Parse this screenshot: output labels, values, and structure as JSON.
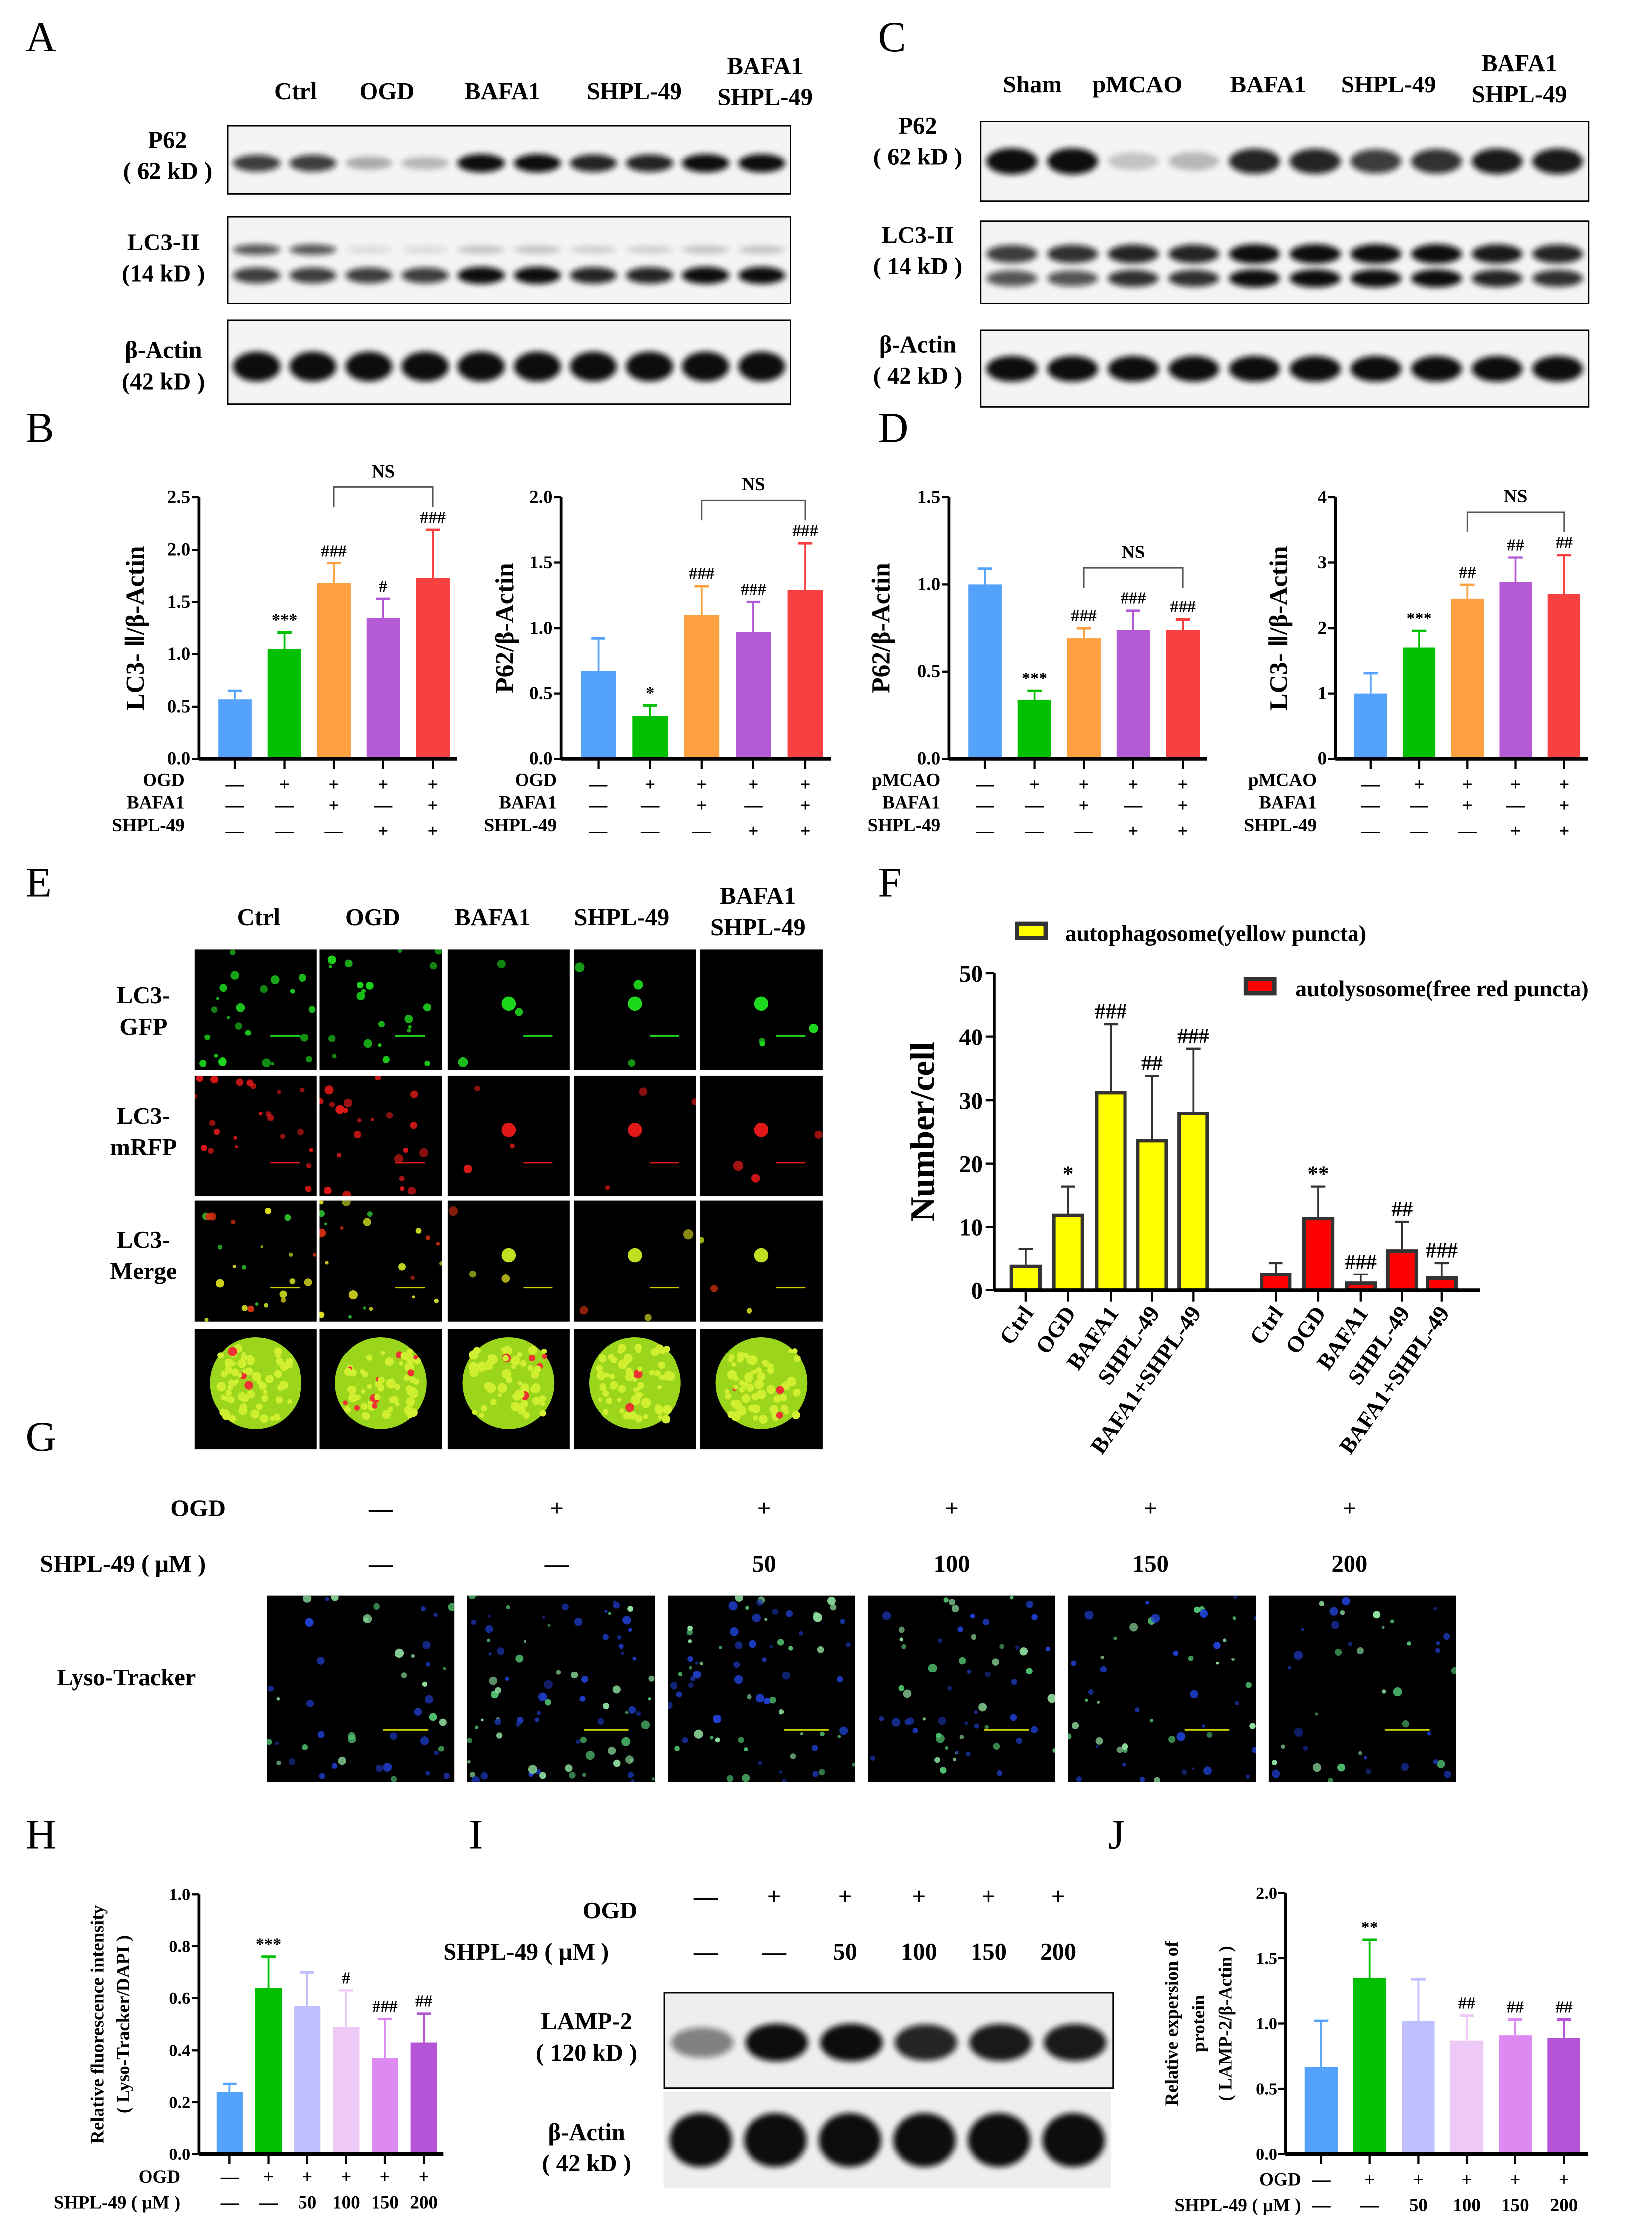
{
  "panels": {
    "A": "A",
    "B": "B",
    "C": "C",
    "D": "D",
    "E": "E",
    "F": "F",
    "G": "G",
    "H": "H",
    "I": "I",
    "J": "J"
  },
  "panel_A": {
    "lanes": [
      "Ctrl",
      "OGD",
      "BAFA1",
      "SHPL-49"
    ],
    "lane5": [
      "BAFA1",
      "SHPL-49"
    ],
    "rows": [
      {
        "name": "P62",
        "kd": "( 62 kD )"
      },
      {
        "name": "LC3-II",
        "kd": "(14 kD )"
      },
      {
        "name": "β-Actin",
        "kd": "(42 kD )"
      }
    ]
  },
  "panel_C": {
    "lanes": [
      "Sham",
      "pMCAO",
      "BAFA1",
      "SHPL-49"
    ],
    "lane5": [
      "BAFA1",
      "SHPL-49"
    ],
    "rows": [
      {
        "name": "P62",
        "kd": "( 62 kD )"
      },
      {
        "name": "LC3-II",
        "kd": "( 14 kD )"
      },
      {
        "name": "β-Actin",
        "kd": "( 42 kD )"
      }
    ]
  },
  "panel_E": {
    "columns": [
      "Ctrl",
      "OGD",
      "BAFA1",
      "SHPL-49"
    ],
    "column5": [
      "BAFA1",
      "SHPL-49"
    ],
    "rows": [
      [
        "LC3-",
        "GFP"
      ],
      [
        "LC3-",
        "mRFP"
      ],
      [
        "LC3-",
        "Merge"
      ]
    ]
  },
  "panel_G": {
    "ogd_label": "OGD",
    "shpl_label": "SHPL-49 ( μM )",
    "ogd": [
      "—",
      "+",
      "+",
      "+",
      "+",
      "+"
    ],
    "shpl": [
      "—",
      "—",
      "50",
      "100",
      "150",
      "200"
    ],
    "row_label": "Lyso-Tracker"
  },
  "panel_I": {
    "ogd_label": "OGD",
    "shpl_label": "SHPL-49 ( μM )",
    "ogd": [
      "—",
      "+",
      "+",
      "+",
      "+",
      "+"
    ],
    "shpl": [
      "—",
      "—",
      "50",
      "100",
      "150",
      "200"
    ],
    "rows": [
      {
        "name": "LAMP-2",
        "kd": "( 120 kD )"
      },
      {
        "name": "β-Actin",
        "kd": "( 42 kD )"
      }
    ]
  },
  "colors": {
    "blue": "#55a2fc",
    "green": "#00bf00",
    "orange": "#fca040",
    "purple": "#b55ad6",
    "red": "#f94040",
    "lavender": "#c0bfff",
    "pink": "#efc9f5",
    "violet": "#dc8af2",
    "magenta": "#b554d6",
    "yellow": "#ffff00",
    "dark_red": "#ff0000"
  },
  "chart_data": [
    {
      "id": "B1",
      "type": "bar",
      "ylabel": [
        "LC3- Ⅱ/β-Actin"
      ],
      "ylim": [
        0,
        2.5
      ],
      "yticks": [
        "0.0",
        "0.5",
        "1.0",
        "1.5",
        "2.0",
        "2.5"
      ],
      "values": [
        0.57,
        1.05,
        1.68,
        1.35,
        1.73
      ],
      "error_top": [
        0.65,
        1.21,
        1.87,
        1.53,
        2.19
      ],
      "significance": [
        "",
        "***",
        "###",
        "#",
        "###"
      ],
      "bracket": {
        "from": 2,
        "to": 4,
        "label": "NS"
      },
      "conditions": [
        {
          "label": "OGD",
          "values": [
            "—",
            "+",
            "+",
            "+",
            "+"
          ]
        },
        {
          "label": "BAFA1",
          "values": [
            "—",
            "—",
            "+",
            "—",
            "+"
          ]
        },
        {
          "label": "SHPL-49",
          "values": [
            "—",
            "—",
            "—",
            "+",
            "+"
          ]
        }
      ],
      "bar_colors": [
        "#55a2fc",
        "#00bf00",
        "#fca040",
        "#b55ad6",
        "#f94040"
      ]
    },
    {
      "id": "B2",
      "type": "bar",
      "ylabel": [
        "P62/β-Actin"
      ],
      "ylim": [
        0,
        2.0
      ],
      "yticks": [
        "0.0",
        "0.5",
        "1.0",
        "1.5",
        "2.0"
      ],
      "values": [
        0.67,
        0.33,
        1.1,
        0.97,
        1.29
      ],
      "error_top": [
        0.92,
        0.41,
        1.32,
        1.2,
        1.65
      ],
      "significance": [
        "",
        "*",
        "###",
        "###",
        "###"
      ],
      "bracket": {
        "from": 2,
        "to": 4,
        "label": "NS"
      },
      "conditions": [
        {
          "label": "OGD",
          "values": [
            "—",
            "+",
            "+",
            "+",
            "+"
          ]
        },
        {
          "label": "BAFA1",
          "values": [
            "—",
            "—",
            "+",
            "—",
            "+"
          ]
        },
        {
          "label": "SHPL-49",
          "values": [
            "—",
            "—",
            "—",
            "+",
            "+"
          ]
        }
      ],
      "bar_colors": [
        "#55a2fc",
        "#00bf00",
        "#fca040",
        "#b55ad6",
        "#f94040"
      ]
    },
    {
      "id": "D1",
      "type": "bar",
      "ylabel": [
        "P62/β-Actin"
      ],
      "ylim": [
        0,
        1.5
      ],
      "yticks": [
        "0.0",
        "0.5",
        "1.0",
        "1.5"
      ],
      "values": [
        1.0,
        0.34,
        0.69,
        0.74,
        0.74
      ],
      "error_top": [
        1.09,
        0.39,
        0.75,
        0.85,
        0.8
      ],
      "significance": [
        "",
        "***",
        "###",
        "###",
        "###"
      ],
      "bracket": {
        "from": 2,
        "to": 4,
        "label": "NS"
      },
      "conditions": [
        {
          "label": "pMCAO",
          "values": [
            "—",
            "+",
            "+",
            "+",
            "+"
          ]
        },
        {
          "label": "BAFA1",
          "values": [
            "—",
            "—",
            "+",
            "—",
            "+"
          ]
        },
        {
          "label": "SHPL-49",
          "values": [
            "—",
            "—",
            "—",
            "+",
            "+"
          ]
        }
      ],
      "bar_colors": [
        "#55a2fc",
        "#00bf00",
        "#fca040",
        "#b55ad6",
        "#f94040"
      ]
    },
    {
      "id": "D2",
      "type": "bar",
      "ylabel": [
        "LC3- Ⅱ/β-Actin"
      ],
      "ylim": [
        0,
        4
      ],
      "yticks": [
        "0",
        "1",
        "2",
        "3",
        "4"
      ],
      "values": [
        1.0,
        1.7,
        2.45,
        2.7,
        2.52
      ],
      "error_top": [
        1.31,
        1.96,
        2.66,
        3.08,
        3.12
      ],
      "significance": [
        "",
        "***",
        "##",
        "##",
        "##"
      ],
      "bracket": {
        "from": 2,
        "to": 4,
        "label": "NS"
      },
      "conditions": [
        {
          "label": "pMCAO",
          "values": [
            "—",
            "+",
            "+",
            "+",
            "+"
          ]
        },
        {
          "label": "BAFA1",
          "values": [
            "—",
            "—",
            "+",
            "—",
            "+"
          ]
        },
        {
          "label": "SHPL-49",
          "values": [
            "—",
            "—",
            "—",
            "+",
            "+"
          ]
        }
      ],
      "bar_colors": [
        "#55a2fc",
        "#00bf00",
        "#fca040",
        "#b55ad6",
        "#f94040"
      ]
    },
    {
      "id": "F",
      "type": "bar",
      "ylabel": [
        "Number/cell"
      ],
      "ylim": [
        0,
        50
      ],
      "yticks": [
        "0",
        "10",
        "20",
        "30",
        "40",
        "50"
      ],
      "categories": [
        "Ctrl",
        "OGD",
        "BAFA1",
        "SHPL-49",
        "BAFA1+SHPL-49"
      ],
      "series": [
        {
          "name": "autophagosome(yellow puncta)",
          "color": "#ffff00",
          "values": [
            3.8,
            11.8,
            31.2,
            23.6,
            27.9
          ],
          "error_top": [
            6.5,
            16.4,
            42.0,
            33.8,
            38.1
          ],
          "significance": [
            "",
            "*",
            "###",
            "##",
            "###"
          ]
        },
        {
          "name": "autolysosome(free red puncta)",
          "color": "#ff0000",
          "values": [
            2.5,
            11.3,
            1.1,
            6.2,
            1.9
          ],
          "error_top": [
            4.3,
            16.4,
            2.5,
            10.8,
            4.3
          ],
          "significance": [
            "",
            "**",
            "###",
            "##",
            "###"
          ]
        }
      ],
      "legend": "top"
    },
    {
      "id": "H",
      "type": "bar",
      "ylabel": [
        "Relative fluorescence intensity",
        "( Lyso-Tracker/DAPI )"
      ],
      "ylim": [
        0,
        1.0
      ],
      "yticks": [
        "0.0",
        "0.2",
        "0.4",
        "0.6",
        "0.8",
        "1.0"
      ],
      "values": [
        0.24,
        0.64,
        0.57,
        0.49,
        0.37,
        0.43
      ],
      "error_top": [
        0.27,
        0.76,
        0.7,
        0.63,
        0.52,
        0.54
      ],
      "significance": [
        "",
        "***",
        "",
        "#",
        "###",
        "##"
      ],
      "conditions": [
        {
          "label": "OGD",
          "values": [
            "—",
            "+",
            "+",
            "+",
            "+",
            "+"
          ]
        },
        {
          "label": "SHPL-49 ( μM )",
          "values": [
            "—",
            "—",
            "50",
            "100",
            "150",
            "200"
          ]
        }
      ],
      "bar_colors": [
        "#55a2fc",
        "#00bf00",
        "#c0bfff",
        "#efc9f5",
        "#dc8af2",
        "#b554d6"
      ]
    },
    {
      "id": "J",
      "type": "bar",
      "ylabel": [
        "Relative expersion of",
        "protein",
        "( LAMP-2/β-Actin )"
      ],
      "ylim": [
        0,
        2.0
      ],
      "yticks": [
        "0.0",
        "0.5",
        "1.0",
        "1.5",
        "2.0"
      ],
      "values": [
        0.67,
        1.35,
        1.02,
        0.87,
        0.91,
        0.89
      ],
      "error_top": [
        1.02,
        1.64,
        1.34,
        1.06,
        1.03,
        1.03
      ],
      "significance": [
        "",
        "**",
        "",
        "##",
        "##",
        "##"
      ],
      "conditions": [
        {
          "label": "OGD",
          "values": [
            "—",
            "+",
            "+",
            "+",
            "+",
            "+"
          ]
        },
        {
          "label": "SHPL-49 ( μM )",
          "values": [
            "—",
            "—",
            "50",
            "100",
            "150",
            "200"
          ]
        }
      ],
      "bar_colors": [
        "#55a2fc",
        "#00bf00",
        "#c0bfff",
        "#efc9f5",
        "#dc8af2",
        "#b554d6"
      ]
    }
  ]
}
